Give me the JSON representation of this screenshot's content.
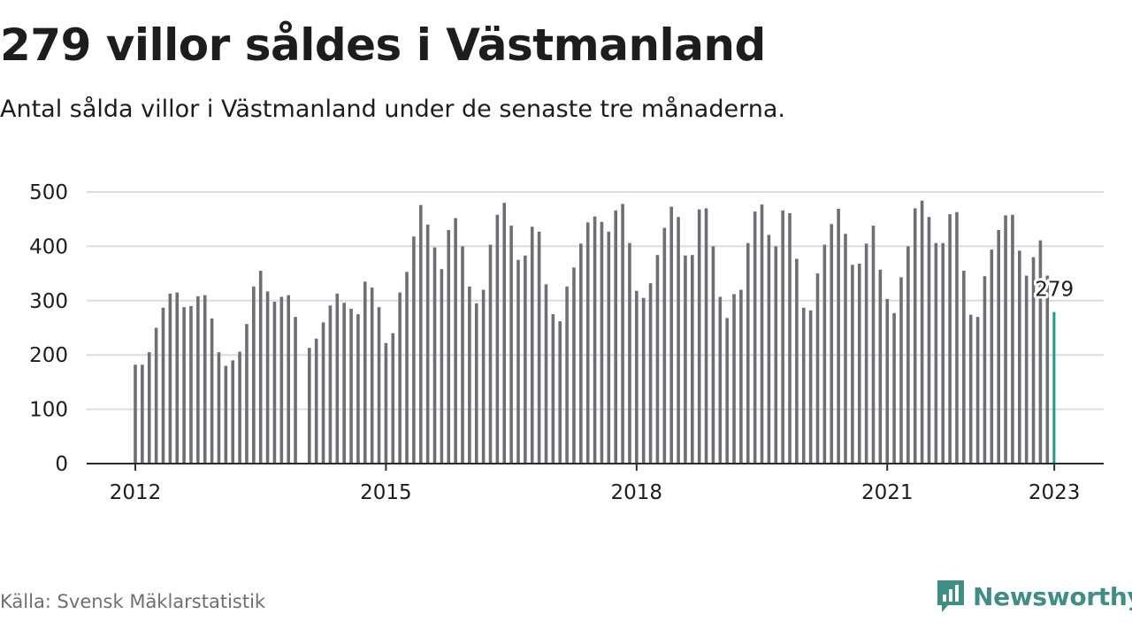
{
  "title": "279 villor såldes i Västmanland",
  "subtitle": "Antal sålda villor i Västmanland under de senaste tre månaderna.",
  "source": "Källa: Svensk Mäklarstatistik",
  "brand": "Newsworthy",
  "colors": {
    "bar": "#6e6e74",
    "highlight": "#1a9c94",
    "grid": "#dcdcdc",
    "axis": "#2b2b2b",
    "brand": "#3d8f86",
    "text": "#1d1d1b",
    "muted": "#6f6f6f"
  },
  "icons": {
    "brand_logo": "newsworthy-logo-icon"
  },
  "chart_data": {
    "type": "bar",
    "xlabel": "",
    "ylabel": "",
    "ylim": [
      0,
      500
    ],
    "yticks": [
      0,
      100,
      200,
      300,
      400,
      500
    ],
    "xticks": [
      "2012",
      "2015",
      "2018",
      "2021",
      "2023"
    ],
    "highlight_label": "279",
    "grid": true,
    "start": "2012-01",
    "series": [
      {
        "values": [
          182,
          182,
          205,
          250,
          287,
          313,
          315,
          288,
          290,
          308,
          310,
          267,
          205,
          180,
          190,
          206,
          257,
          326,
          355,
          317,
          298,
          307,
          310,
          270,
          null,
          213,
          230,
          260,
          291,
          313,
          296,
          285,
          275,
          335,
          324,
          288,
          222,
          240,
          315,
          353,
          418,
          476,
          440,
          398,
          358,
          430,
          452,
          400,
          326,
          295,
          320,
          403,
          458,
          480,
          438,
          375,
          383,
          436,
          427,
          330,
          275,
          262,
          326,
          361,
          405,
          444,
          455,
          445,
          427,
          466,
          478,
          406,
          318,
          305,
          332,
          384,
          434,
          473,
          454,
          383,
          384,
          468,
          470,
          400,
          307,
          268,
          312,
          320,
          406,
          464,
          477,
          421,
          400,
          466,
          461,
          377,
          287,
          282,
          350,
          403,
          441,
          469,
          423,
          366,
          368,
          405,
          438,
          357,
          303,
          277,
          343,
          400,
          470,
          484,
          454,
          406,
          406,
          459,
          463,
          355,
          274,
          270,
          345,
          394,
          430,
          457,
          458,
          392,
          346,
          380,
          411,
          346,
          279
        ]
      }
    ]
  }
}
